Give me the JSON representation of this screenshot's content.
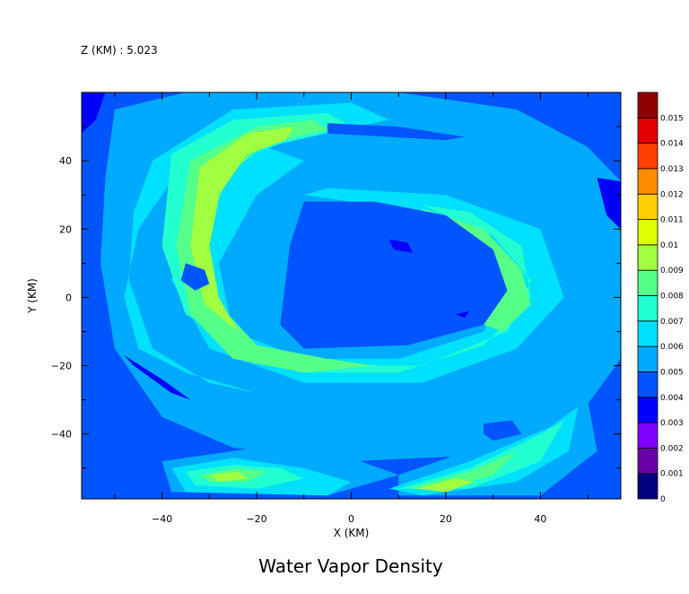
{
  "level_label": "Z (KM) : 5.023",
  "chart_data": {
    "type": "heatmap",
    "title": "Water Vapor Density",
    "xlabel": "X (KM)",
    "ylabel": "Y (KM)",
    "xlim": [
      -57,
      57
    ],
    "ylim": [
      -59,
      60
    ],
    "xticks": [
      -40,
      -20,
      0,
      20,
      40
    ],
    "yticks": [
      -40,
      -20,
      0,
      20,
      40
    ],
    "xtick_labels": [
      "−40",
      "−20",
      "0",
      "20",
      "40"
    ],
    "ytick_labels": [
      "−40",
      "−20",
      "0",
      "20",
      "40"
    ],
    "colorbar": {
      "levels": [
        0,
        0.001,
        0.002,
        0.003,
        0.004,
        0.005,
        0.006,
        0.007,
        0.008,
        0.009,
        0.01,
        0.011,
        0.012,
        0.013,
        0.014,
        0.015
      ],
      "level_labels": [
        "0",
        "0.001",
        "0.002",
        "0.003",
        "0.004",
        "0.005",
        "0.006",
        "0.007",
        "0.008",
        "0.009",
        "0.01",
        "0.011",
        "0.012",
        "0.013",
        "0.014",
        "0.015"
      ],
      "colors": [
        "#000080",
        "#6a00a8",
        "#8000ff",
        "#0000ff",
        "#0055ff",
        "#00aaff",
        "#00e0ff",
        "#22ffd0",
        "#55ff88",
        "#a0ff40",
        "#e0ff00",
        "#ffd000",
        "#ff8c00",
        "#ff4000",
        "#e00000",
        "#900000"
      ]
    },
    "regions": [
      {
        "level": 0.004,
        "points": [
          [
            -57,
            60
          ],
          [
            57,
            60
          ],
          [
            57,
            -59
          ],
          [
            -57,
            -59
          ]
        ]
      },
      {
        "level": 0.005,
        "points": [
          [
            -50,
            55
          ],
          [
            -35,
            60
          ],
          [
            10,
            60
          ],
          [
            35,
            55
          ],
          [
            50,
            44
          ],
          [
            57,
            34
          ],
          [
            57,
            -18
          ],
          [
            48,
            -35
          ],
          [
            30,
            -46
          ],
          [
            0,
            -48
          ],
          [
            -25,
            -44
          ],
          [
            -40,
            -35
          ],
          [
            -50,
            -15
          ],
          [
            -53,
            10
          ],
          [
            -52,
            35
          ]
        ]
      },
      {
        "level": 0.005,
        "points": [
          [
            -40,
            -48
          ],
          [
            -20,
            -44
          ],
          [
            0,
            -47
          ],
          [
            10,
            -52
          ],
          [
            -5,
            -58
          ],
          [
            -38,
            -57
          ]
        ]
      },
      {
        "level": 0.005,
        "points": [
          [
            10,
            -52
          ],
          [
            35,
            -40
          ],
          [
            50,
            -30
          ],
          [
            52,
            -45
          ],
          [
            40,
            -58
          ],
          [
            10,
            -58
          ]
        ]
      },
      {
        "level": 0.006,
        "points": [
          [
            -42,
            40
          ],
          [
            -25,
            55
          ],
          [
            0,
            57
          ],
          [
            8,
            52
          ],
          [
            -5,
            48
          ],
          [
            -25,
            42
          ],
          [
            -35,
            25
          ],
          [
            -38,
            5
          ],
          [
            -30,
            -15
          ],
          [
            -10,
            -25
          ],
          [
            15,
            -25
          ],
          [
            35,
            -15
          ],
          [
            45,
            0
          ],
          [
            40,
            20
          ],
          [
            20,
            30
          ],
          [
            -5,
            32
          ],
          [
            -10,
            30
          ],
          [
            5,
            27
          ],
          [
            25,
            22
          ],
          [
            33,
            5
          ],
          [
            28,
            -10
          ],
          [
            10,
            -18
          ],
          [
            -10,
            -18
          ],
          [
            -25,
            -10
          ],
          [
            -28,
            10
          ],
          [
            -20,
            30
          ],
          [
            -10,
            40
          ],
          [
            -20,
            45
          ],
          [
            -35,
            40
          ],
          [
            -45,
            20
          ],
          [
            -48,
            0
          ],
          [
            -45,
            -15
          ],
          [
            -35,
            -22
          ],
          [
            -20,
            -28
          ],
          [
            -30,
            -25
          ],
          [
            -42,
            -15
          ],
          [
            -47,
            5
          ],
          [
            -46,
            25
          ]
        ]
      },
      {
        "level": 0.006,
        "points": [
          [
            -38,
            -50
          ],
          [
            -25,
            -47
          ],
          [
            -10,
            -50
          ],
          [
            0,
            -54
          ],
          [
            -5,
            -58
          ],
          [
            -35,
            -57
          ]
        ]
      },
      {
        "level": 0.006,
        "points": [
          [
            8,
            -56
          ],
          [
            25,
            -48
          ],
          [
            42,
            -38
          ],
          [
            48,
            -32
          ],
          [
            46,
            -45
          ],
          [
            35,
            -54
          ],
          [
            15,
            -58
          ]
        ]
      },
      {
        "level": 0.007,
        "points": [
          [
            -38,
            42
          ],
          [
            -25,
            52
          ],
          [
            -5,
            54
          ],
          [
            0,
            50
          ],
          [
            -15,
            45
          ],
          [
            -28,
            38
          ],
          [
            -33,
            20
          ],
          [
            -33,
            0
          ],
          [
            -25,
            -15
          ],
          [
            -10,
            -22
          ],
          [
            10,
            -22
          ],
          [
            28,
            -14
          ],
          [
            38,
            0
          ],
          [
            36,
            15
          ],
          [
            25,
            25
          ],
          [
            15,
            27
          ],
          [
            30,
            18
          ],
          [
            38,
            5
          ],
          [
            33,
            -10
          ],
          [
            15,
            -20
          ],
          [
            -5,
            -20
          ],
          [
            -22,
            -15
          ],
          [
            -35,
            -5
          ],
          [
            -40,
            15
          ]
        ]
      },
      {
        "level": 0.007,
        "points": [
          [
            -35,
            -51
          ],
          [
            -25,
            -49
          ],
          [
            -15,
            -50
          ],
          [
            -10,
            -53
          ],
          [
            -20,
            -56
          ],
          [
            -33,
            -55
          ]
        ]
      },
      {
        "level": 0.007,
        "points": [
          [
            10,
            -56
          ],
          [
            25,
            -50
          ],
          [
            40,
            -40
          ],
          [
            45,
            -36
          ],
          [
            40,
            -48
          ],
          [
            25,
            -56
          ]
        ]
      },
      {
        "level": 0.008,
        "points": [
          [
            -34,
            40
          ],
          [
            -20,
            50
          ],
          [
            -8,
            52
          ],
          [
            -5,
            49
          ],
          [
            -18,
            45
          ],
          [
            -27,
            35
          ],
          [
            -30,
            15
          ],
          [
            -28,
            -2
          ],
          [
            -20,
            -14
          ],
          [
            -5,
            -18
          ],
          [
            5,
            -20
          ],
          [
            -10,
            -22
          ],
          [
            -25,
            -18
          ],
          [
            -34,
            -5
          ],
          [
            -37,
            15
          ]
        ]
      },
      {
        "level": 0.008,
        "points": [
          [
            15,
            26
          ],
          [
            28,
            20
          ],
          [
            36,
            8
          ],
          [
            38,
            -2
          ],
          [
            32,
            -10
          ],
          [
            28,
            -8
          ],
          [
            32,
            0
          ],
          [
            28,
            12
          ],
          [
            18,
            20
          ]
        ]
      },
      {
        "level": 0.008,
        "points": [
          [
            -32,
            -52
          ],
          [
            -24,
            -50
          ],
          [
            -18,
            -51
          ],
          [
            -22,
            -54
          ],
          [
            -30,
            -54
          ]
        ]
      },
      {
        "level": 0.008,
        "points": [
          [
            12,
            -56
          ],
          [
            25,
            -51
          ],
          [
            35,
            -45
          ],
          [
            30,
            -52
          ],
          [
            20,
            -56
          ]
        ]
      },
      {
        "level": 0.009,
        "points": [
          [
            -32,
            38
          ],
          [
            -22,
            48
          ],
          [
            -12,
            50
          ],
          [
            -14,
            46
          ],
          [
            -22,
            42
          ],
          [
            -28,
            30
          ],
          [
            -30,
            15
          ],
          [
            -28,
            0
          ],
          [
            -24,
            -10
          ],
          [
            -31,
            -2
          ],
          [
            -34,
            15
          ]
        ]
      },
      {
        "level": 0.009,
        "points": [
          [
            -30,
            -52
          ],
          [
            -24,
            -51
          ],
          [
            -22,
            -53
          ],
          [
            -28,
            -54
          ]
        ]
      },
      {
        "level": 0.009,
        "points": [
          [
            14,
            -56
          ],
          [
            22,
            -53
          ],
          [
            26,
            -54
          ],
          [
            20,
            -57
          ]
        ]
      },
      {
        "level": 0.004,
        "points": [
          [
            -10,
            28
          ],
          [
            5,
            28
          ],
          [
            20,
            24
          ],
          [
            30,
            14
          ],
          [
            33,
            2
          ],
          [
            28,
            -8
          ],
          [
            12,
            -14
          ],
          [
            -10,
            -15
          ],
          [
            -15,
            -8
          ],
          [
            -13,
            15
          ]
        ]
      },
      {
        "level": 0.004,
        "points": [
          [
            -5,
            48
          ],
          [
            8,
            47
          ],
          [
            20,
            46
          ],
          [
            24,
            47
          ],
          [
            10,
            50
          ],
          [
            -5,
            51
          ]
        ]
      },
      {
        "level": 0.004,
        "points": [
          [
            -35,
            10
          ],
          [
            -31,
            8
          ],
          [
            -30,
            4
          ],
          [
            -33,
            2
          ],
          [
            -36,
            5
          ]
        ]
      },
      {
        "level": 0.004,
        "points": [
          [
            28,
            -37
          ],
          [
            34,
            -36
          ],
          [
            36,
            -40
          ],
          [
            30,
            -42
          ],
          [
            28,
            -40
          ]
        ]
      },
      {
        "level": 0.003,
        "points": [
          [
            -57,
            60
          ],
          [
            -52,
            60
          ],
          [
            -54,
            52
          ],
          [
            -57,
            48
          ]
        ]
      },
      {
        "level": 0.003,
        "points": [
          [
            52,
            35
          ],
          [
            57,
            34
          ],
          [
            57,
            20
          ],
          [
            54,
            24
          ]
        ]
      },
      {
        "level": 0.003,
        "points": [
          [
            -48,
            -17
          ],
          [
            -40,
            -24
          ],
          [
            -34,
            -30
          ],
          [
            -38,
            -28
          ],
          [
            -46,
            -20
          ]
        ]
      },
      {
        "level": 0.003,
        "points": [
          [
            8,
            17
          ],
          [
            12,
            16
          ],
          [
            13,
            13
          ],
          [
            9,
            14
          ]
        ]
      },
      {
        "level": 0.003,
        "points": [
          [
            22,
            -5
          ],
          [
            25,
            -4
          ],
          [
            24,
            -6
          ]
        ]
      }
    ]
  }
}
